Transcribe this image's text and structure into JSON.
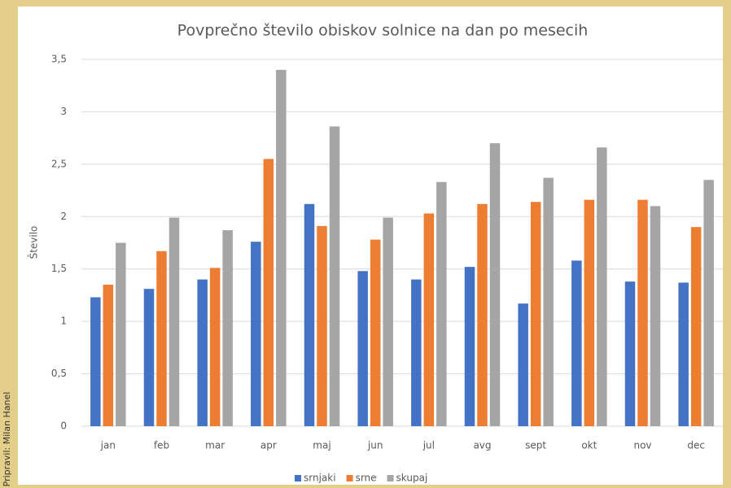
{
  "chart_data": {
    "type": "bar",
    "title": "Povprečno število obiskov solnice na dan po mesecih",
    "y_label": "Število",
    "annotation": "Pripravil: Milan Hanel",
    "categories": [
      "jan",
      "feb",
      "mar",
      "apr",
      "maj",
      "jun",
      "jul",
      "avg",
      "sept",
      "okt",
      "nov",
      "dec"
    ],
    "series": [
      {
        "name": "srnjaki",
        "color": "#4472c4",
        "values": [
          1.23,
          1.31,
          1.4,
          1.76,
          2.12,
          1.48,
          1.4,
          1.52,
          1.17,
          1.58,
          1.38,
          1.37
        ]
      },
      {
        "name": "srne",
        "color": "#ed7d31",
        "values": [
          1.35,
          1.67,
          1.51,
          2.55,
          1.91,
          1.78,
          2.03,
          2.12,
          2.14,
          2.16,
          2.16,
          1.9
        ]
      },
      {
        "name": "skupaj",
        "color": "#a5a5a5",
        "values": [
          1.75,
          1.99,
          1.87,
          3.4,
          2.86,
          1.99,
          2.33,
          2.7,
          2.37,
          2.66,
          2.1,
          2.35
        ]
      }
    ],
    "ylim": [
      0,
      3.5
    ],
    "yticks": [
      0,
      {
        "value": 0.5,
        "label": "0,5"
      },
      1,
      {
        "value": 1.5,
        "label": "1,5"
      },
      2,
      {
        "value": 2.5,
        "label": "2,5"
      },
      3,
      {
        "value": 3.5,
        "label": "3,5"
      }
    ],
    "grid": true,
    "legend": "bottom"
  }
}
